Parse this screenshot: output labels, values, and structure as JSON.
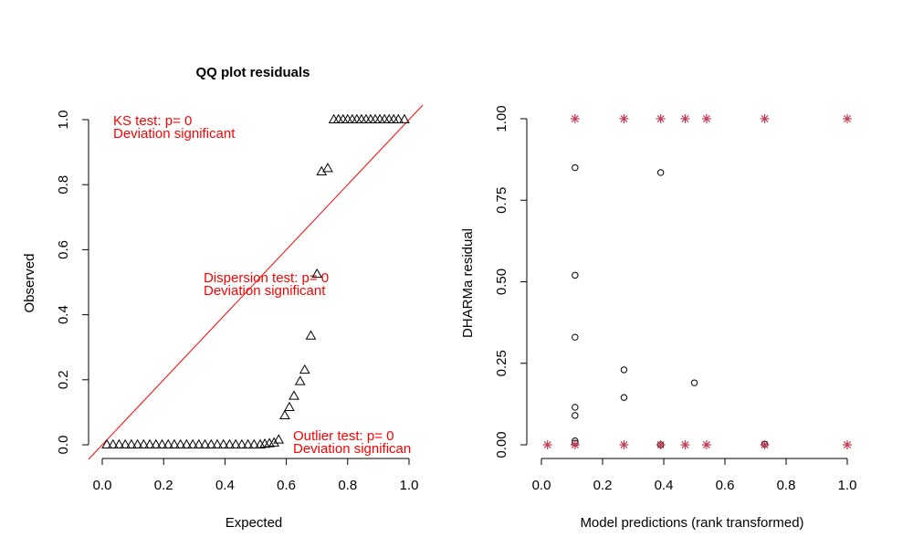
{
  "colors": {
    "red": "#ff0000",
    "outlier": "#c23b55",
    "black": "#000000"
  },
  "chart_data": [
    {
      "type": "scatter",
      "title": "QQ plot residuals",
      "xlabel": "Expected",
      "ylabel": "Observed",
      "xlim": [
        0,
        1
      ],
      "ylim": [
        0,
        1
      ],
      "xticks": [
        "0.0",
        "0.2",
        "0.4",
        "0.6",
        "0.8",
        "1.0"
      ],
      "yticks": [
        "0.0",
        "0.2",
        "0.4",
        "0.6",
        "0.8",
        "1.0"
      ],
      "reference_line": "y = x",
      "annotations": [
        {
          "lines": [
            "KS test: p= 0",
            "Deviation  significant"
          ]
        },
        {
          "lines": [
            "Dispersion test: p= 0",
            "Deviation  significant"
          ]
        },
        {
          "lines": [
            "Outlier test: p= 0",
            "Deviation  significan"
          ]
        }
      ],
      "points": [
        [
          0.015,
          0
        ],
        [
          0.035,
          0
        ],
        [
          0.055,
          0
        ],
        [
          0.075,
          0
        ],
        [
          0.095,
          0
        ],
        [
          0.115,
          0
        ],
        [
          0.135,
          0
        ],
        [
          0.155,
          0
        ],
        [
          0.175,
          0
        ],
        [
          0.195,
          0
        ],
        [
          0.215,
          0
        ],
        [
          0.235,
          0
        ],
        [
          0.255,
          0
        ],
        [
          0.275,
          0
        ],
        [
          0.295,
          0
        ],
        [
          0.315,
          0
        ],
        [
          0.335,
          0
        ],
        [
          0.355,
          0
        ],
        [
          0.375,
          0
        ],
        [
          0.395,
          0
        ],
        [
          0.415,
          0
        ],
        [
          0.435,
          0
        ],
        [
          0.455,
          0
        ],
        [
          0.475,
          0
        ],
        [
          0.495,
          0
        ],
        [
          0.515,
          0
        ],
        [
          0.53,
          0.002
        ],
        [
          0.545,
          0.004
        ],
        [
          0.56,
          0.006
        ],
        [
          0.575,
          0.015
        ],
        [
          0.595,
          0.09
        ],
        [
          0.61,
          0.115
        ],
        [
          0.625,
          0.15
        ],
        [
          0.645,
          0.195
        ],
        [
          0.66,
          0.23
        ],
        [
          0.68,
          0.335
        ],
        [
          0.7,
          0.525
        ],
        [
          0.715,
          0.84
        ],
        [
          0.735,
          0.85
        ],
        [
          0.755,
          1
        ],
        [
          0.77,
          1
        ],
        [
          0.785,
          1
        ],
        [
          0.8,
          1
        ],
        [
          0.815,
          1
        ],
        [
          0.83,
          1
        ],
        [
          0.845,
          1
        ],
        [
          0.86,
          1
        ],
        [
          0.875,
          1
        ],
        [
          0.89,
          1
        ],
        [
          0.905,
          1
        ],
        [
          0.92,
          1
        ],
        [
          0.935,
          1
        ],
        [
          0.95,
          1
        ],
        [
          0.965,
          1
        ],
        [
          0.985,
          1
        ]
      ]
    },
    {
      "type": "scatter",
      "xlabel": "Model predictions (rank transformed)",
      "ylabel": "DHARMa residual",
      "xlim": [
        0,
        1
      ],
      "ylim": [
        0,
        1
      ],
      "xticks": [
        "0.0",
        "0.2",
        "0.4",
        "0.6",
        "0.8",
        "1.0"
      ],
      "yticks": [
        "0.00",
        "0.25",
        "0.50",
        "0.75",
        "1.00"
      ],
      "circles": [
        [
          0.11,
          0.85
        ],
        [
          0.11,
          0.52
        ],
        [
          0.11,
          0.33
        ],
        [
          0.11,
          0.115
        ],
        [
          0.11,
          0.09
        ],
        [
          0.11,
          0.012
        ],
        [
          0.11,
          0.005
        ],
        [
          0.27,
          0.23
        ],
        [
          0.27,
          0.145
        ],
        [
          0.39,
          0.835
        ],
        [
          0.39,
          0.0
        ],
        [
          0.5,
          0.19
        ],
        [
          0.73,
          0.002
        ]
      ],
      "outliers": [
        [
          0.02,
          0
        ],
        [
          0.11,
          0
        ],
        [
          0.27,
          0
        ],
        [
          0.39,
          0
        ],
        [
          0.47,
          0
        ],
        [
          0.54,
          0
        ],
        [
          0.73,
          0
        ],
        [
          1.0,
          0
        ],
        [
          0.11,
          1
        ],
        [
          0.27,
          1
        ],
        [
          0.39,
          1
        ],
        [
          0.47,
          1
        ],
        [
          0.54,
          1
        ],
        [
          0.73,
          1
        ],
        [
          1.0,
          1
        ]
      ]
    }
  ]
}
